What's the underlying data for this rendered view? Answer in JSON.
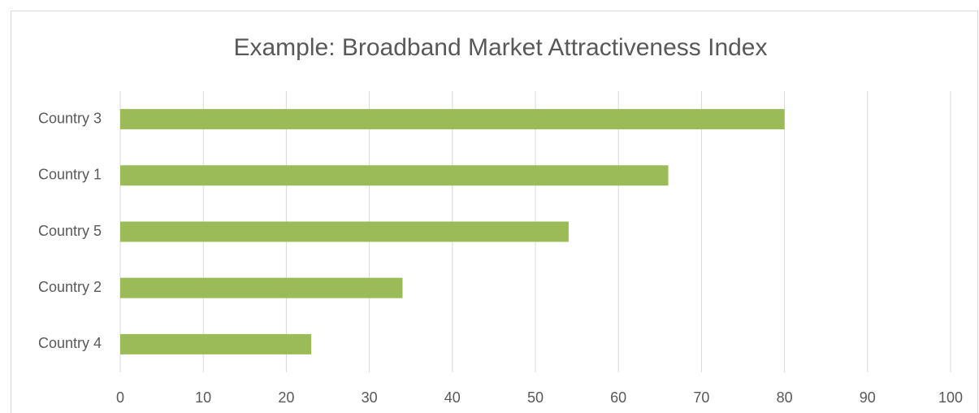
{
  "chart_data": {
    "type": "bar",
    "orientation": "horizontal",
    "title": "Example: Broadband Market Attractiveness Index",
    "categories": [
      "Country 3",
      "Country 1",
      "Country 5",
      "Country 2",
      "Country 4"
    ],
    "values": [
      80,
      66,
      54,
      34,
      23
    ],
    "color": "#9bbb59",
    "xlim": [
      0,
      100
    ],
    "xticks": [
      0,
      10,
      20,
      30,
      40,
      50,
      60,
      70,
      80,
      90,
      100
    ],
    "grid": true
  }
}
